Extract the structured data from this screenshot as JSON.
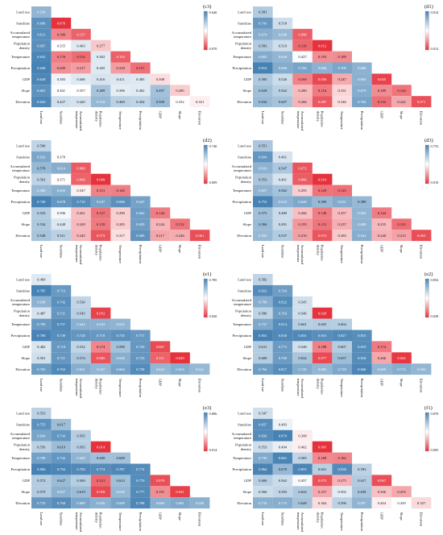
{
  "chart_data": [
    {
      "type": "heatmap",
      "tag": "(c3)",
      "range": [
        0.07,
        0.64
      ],
      "range_labels": [
        "0.640",
        "0.070"
      ],
      "variables": [
        "Land use",
        "Sunshine",
        "Accumulated temperature",
        "Population density",
        "Temperature",
        "Precipitation",
        "GDP",
        "Slope",
        "Elevation"
      ],
      "matrix": [
        [
          "0.526"
        ],
        [
          "0.606",
          "0.070"
        ],
        [
          "0.611",
          "0.186",
          "0.137"
        ],
        [
          "0.607",
          "0.355",
          "0.403",
          "0.277"
        ],
        [
          "0.632",
          "0.176",
          "0.152",
          "0.402",
          "0.134"
        ],
        [
          "0.640",
          "0.200",
          "0.217",
          "0.405",
          "0.218",
          "0.157"
        ],
        [
          "0.628",
          "0.383",
          "0.406",
          "0.416",
          "0.411",
          "0.405",
          "0.308"
        ],
        [
          "0.601",
          "0.361",
          "0.357",
          "0.489",
          "0.396",
          "0.402",
          "0.497",
          "0.285"
        ],
        [
          "0.625",
          "0.427",
          "0.420",
          "0.518",
          "0.460",
          "0.454",
          "0.509",
          "0.352",
          "0.331"
        ]
      ]
    },
    {
      "type": "heatmap",
      "tag": "(d1)",
      "range": [
        0.012,
        0.814
      ],
      "range_labels": [
        "0.814",
        "0.012"
      ],
      "variables": [
        "Land use",
        "Sunshine",
        "Accumulated temperature",
        "Population density",
        "Temperature",
        "Precipitation",
        "GDP",
        "Slope",
        "Elevation"
      ],
      "matrix": [
        [
          "0.581"
        ],
        [
          "0.741",
          "0.518"
        ],
        [
          "0.674",
          "0.640",
          "0.098"
        ],
        [
          "0.583",
          "0.519",
          "0.119",
          "0.012"
        ],
        [
          "0.682",
          "0.649",
          "0.427",
          "0.193",
          "0.189"
        ],
        [
          "0.814",
          "0.680",
          "0.706",
          "0.660",
          "0.700",
          "0.660"
        ],
        [
          "0.585",
          "0.526",
          "0.169",
          "0.056",
          "0.247",
          "0.665",
          "0.045"
        ],
        [
          "0.618",
          "0.562",
          "0.280",
          "0.154",
          "0.331",
          "0.679",
          "0.189",
          "0.144"
        ],
        [
          "0.632",
          "0.607",
          "0.266",
          "0.087",
          "0.346",
          "0.704",
          "0.132",
          "0.242",
          "0.071"
        ]
      ]
    },
    {
      "type": "heatmap",
      "tag": "(d2)",
      "range": [
        0.009,
        0.74
      ],
      "range_labels": [
        "0.740",
        "0.009"
      ],
      "variables": [
        "Land use",
        "Sunshine",
        "Accumulated temperature",
        "Population density",
        "Temperature",
        "Precipitation",
        "GDP",
        "Slope",
        "Elevation"
      ],
      "matrix": [
        [
          "0.500"
        ],
        [
          "0.633",
          "0.370"
        ],
        [
          "0.578",
          "0.614",
          "0.080"
        ],
        [
          "0.502",
          "0.371",
          "0.096",
          "0.009"
        ],
        [
          "0.580",
          "0.605",
          "0.347",
          "0.151",
          "0.145"
        ],
        [
          "0.740",
          "0.678",
          "0.710",
          "0.647",
          "0.696",
          "0.647"
        ],
        [
          "0.523",
          "0.396",
          "0.261",
          "0.127",
          "0.290",
          "0.662",
          "0.144"
        ],
        [
          "0.534",
          "0.448",
          "0.249",
          "0.139",
          "0.285",
          "0.659",
          "0.244",
          "0.132"
        ],
        [
          "0.548",
          "0.511",
          "0.245",
          "0.073",
          "0.317",
          "0.689",
          "0.217",
          "0.226",
          "0.061"
        ]
      ]
    },
    {
      "type": "heatmap",
      "tag": "(d3)",
      "range": [
        0.01,
        0.753
      ],
      "range_labels": [
        "0.753",
        "0.010"
      ],
      "variables": [
        "Land use",
        "Sunshine",
        "Accumulated temperature",
        "Population density",
        "Temperature",
        "Precipitation",
        "GDP",
        "Slope",
        "Elevation"
      ],
      "matrix": [
        [
          "0.551"
        ],
        [
          "0.694",
          "0.461"
        ],
        [
          "0.610",
          "0.547",
          "0.072"
        ],
        [
          "0.553",
          "0.461",
          "0.086",
          "0.010"
        ],
        [
          "0.607",
          "0.562",
          "0.295",
          "0.129",
          "0.125"
        ],
        [
          "0.753",
          "0.610",
          "0.640",
          "0.589",
          "0.631",
          "0.589"
        ],
        [
          "0.573",
          "0.489",
          "0.266",
          "0.148",
          "0.257",
          "0.604",
          "0.144"
        ],
        [
          "0.584",
          "0.491",
          "0.195",
          "0.131",
          "0.237",
          "0.608",
          "0.255",
          "0.123"
        ],
        [
          "0.592",
          "0.537",
          "0.210",
          "0.074",
          "0.283",
          "0.624",
          "0.240",
          "0.213",
          "0.063"
        ]
      ]
    },
    {
      "type": "heatmap",
      "tag": "(e1)",
      "range": [
        0.02,
        0.785
      ],
      "range_labels": [
        "0.785",
        "0.020"
      ],
      "variables": [
        "Land use",
        "Sunshine",
        "Accumulated temperature",
        "Population density",
        "Temperature",
        "Precipitation",
        "GDP",
        "Slope",
        "Elevation"
      ],
      "matrix": [
        [
          "0.469"
        ],
        [
          "0.785",
          "0.716"
        ],
        [
          "0.638",
          "0.742",
          "0.530"
        ],
        [
          "0.487",
          "0.721",
          "0.545",
          "0.052"
        ],
        [
          "0.709",
          "0.757",
          "0.644",
          "0.643",
          "0.632"
        ],
        [
          "0.780",
          "0.749",
          "0.728",
          "0.718",
          "0.735",
          "0.717"
        ],
        [
          "0.482",
          "0.718",
          "0.532",
          "0.174",
          "0.590",
          "0.720",
          "0.067"
        ],
        [
          "0.501",
          "0.721",
          "0.574",
          "0.085",
          "0.646",
          "0.723",
          "0.111",
          "0.020"
        ],
        [
          "0.705",
          "0.763",
          "0.651",
          "0.627",
          "0.684",
          "0.758",
          "0.623",
          "0.653",
          "0.621"
        ]
      ]
    },
    {
      "type": "heatmap",
      "tag": "(e2)",
      "range": [
        0.028,
        0.854
      ],
      "range_labels": [
        "0.854",
        "0.028"
      ],
      "variables": [
        "Land use",
        "Sunshine",
        "Accumulated temperature",
        "Population density",
        "Temperature",
        "Precipitation",
        "GDP",
        "Slope",
        "Elevation"
      ],
      "matrix": [
        [
          "0.582"
        ],
        [
          "0.823",
          "0.764"
        ],
        [
          "0.708",
          "0.822",
          "0.545"
        ],
        [
          "0.586",
          "0.764",
          "0.546",
          "0.028"
        ],
        [
          "0.727",
          "0.814",
          "0.601",
          "0.605",
          "0.604"
        ],
        [
          "0.854",
          "0.830",
          "0.831",
          "0.816",
          "0.827",
          "0.815"
        ],
        [
          "0.611",
          "0.772",
          "0.548",
          "0.188",
          "0.607",
          "0.819",
          "0.174"
        ],
        [
          "0.609",
          "0.769",
          "0.632",
          "0.077",
          "0.657",
          "0.818",
          "0.266",
          "0.042"
        ],
        [
          "0.764",
          "0.817",
          "0.720",
          "0.683",
          "0.729",
          "0.840",
          "0.685",
          "0.713",
          "0.683"
        ]
      ]
    },
    {
      "type": "heatmap",
      "tag": "(e3)",
      "range": [
        0.014,
        0.806
      ],
      "range_labels": [
        "0.806",
        "0.014"
      ],
      "variables": [
        "Land use",
        "Sunshine",
        "Accumulated temperature",
        "Population density",
        "Temperature",
        "Precipitation",
        "GDP",
        "Slope",
        "Elevation"
      ],
      "matrix": [
        [
          "0.553"
        ],
        [
          "0.755",
          "0.617"
        ],
        [
          "0.694",
          "0.744",
          "0.565"
        ],
        [
          "0.556",
          "0.619",
          "0.565",
          "0.014"
        ],
        [
          "0.708",
          "0.744",
          "0.649",
          "0.609",
          "0.609"
        ],
        [
          "0.806",
          "0.794",
          "0.783",
          "0.774",
          "0.787",
          "0.774"
        ],
        [
          "0.572",
          "0.627",
          "0.569",
          "0.121",
          "0.613",
          "0.770",
          "0.070"
        ],
        [
          "0.575",
          "0.657",
          "0.619",
          "0.058",
          "0.639",
          "0.777",
          "0.191",
          "0.041"
        ],
        [
          "0.735",
          "0.768",
          "0.689",
          "0.656",
          "0.698",
          "0.788",
          "0.660",
          "0.681",
          "0.656"
        ]
      ]
    },
    {
      "type": "heatmap",
      "tag": "(f1)",
      "range": [
        0.005,
        0.87
      ],
      "range_labels": [
        "0.870",
        "0.005"
      ],
      "variables": [
        "Land use",
        "Sunshine",
        "Accumulated temperature",
        "Population density",
        "Temperature",
        "Precipitation",
        "GDP",
        "Slope",
        "Elevation"
      ],
      "matrix": [
        [
          "0.547"
        ],
        [
          "0.827",
          "0.483"
        ],
        [
          "0.836",
          "0.870",
          "0.398"
        ],
        [
          "0.553",
          "0.494",
          "0.402",
          "0.005"
        ],
        [
          "0.730",
          "0.861",
          "0.585",
          "0.189",
          "0.182"
        ],
        [
          "0.864",
          "0.679",
          "0.855",
          "0.601",
          "0.838",
          "0.593"
        ],
        [
          "0.606",
          "0.562",
          "0.457",
          "0.075",
          "0.275",
          "0.617",
          "0.067"
        ],
        [
          "0.560",
          "0.583",
          "0.624",
          "0.257",
          "0.502",
          "0.639",
          "0.306",
          "0.253"
        ],
        [
          "0.710",
          "0.719",
          "0.649",
          "0.364",
          "0.596",
          "0.697",
          "0.404",
          "0.439",
          "0.357"
        ]
      ]
    }
  ]
}
